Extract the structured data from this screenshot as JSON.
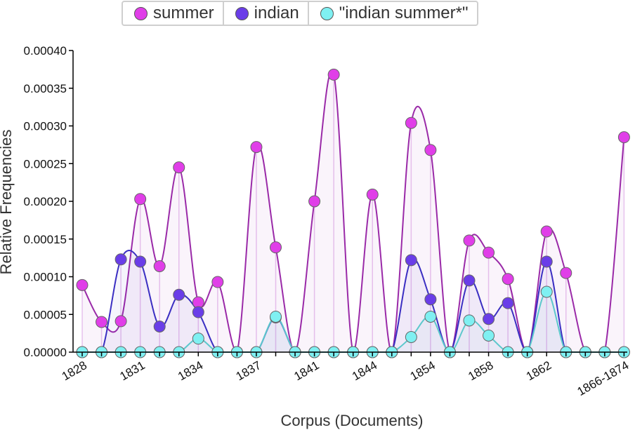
{
  "chart_data": {
    "type": "line",
    "xlabel": "Corpus (Documents)",
    "ylabel": "Relative Frequencies",
    "ylim": [
      0,
      0.0004
    ],
    "y_ticks": [
      "0.00000",
      "0.00005",
      "0.00010",
      "0.00015",
      "0.00020",
      "0.00025",
      "0.00030",
      "0.00035",
      "0.00040"
    ],
    "x_tick_labels": [
      "1828",
      "1831",
      "1834",
      "1837",
      "1841",
      "1844",
      "1854",
      "1858",
      "1862",
      "1866-1874"
    ],
    "x_tick_label_indices": [
      0,
      3,
      6,
      9,
      12,
      15,
      18,
      21,
      24,
      28
    ],
    "n_points": 29,
    "legend_position": "top",
    "series": [
      {
        "name": "summer",
        "color": "#e03ee8",
        "line_color": "#9a2aa8",
        "values": [
          8.9e-05,
          4e-05,
          4.1e-05,
          0.000203,
          0.000114,
          0.000245,
          6.6e-05,
          9.3e-05,
          0.0,
          0.000272,
          0.000139,
          0.0,
          0.0002,
          0.000368,
          0.0,
          0.000209,
          0.0,
          0.000304,
          0.000268,
          0.0,
          0.000148,
          0.000132,
          9.7e-05,
          0.0,
          0.00016,
          0.000105,
          0.0,
          0.0,
          0.000285
        ]
      },
      {
        "name": "indian",
        "color": "#6a3de8",
        "line_color": "#3a2ec2",
        "values": [
          0.0,
          0.0,
          0.000123,
          0.00012,
          3.4e-05,
          7.6e-05,
          5.3e-05,
          0.0,
          0.0,
          0.0,
          4.6e-05,
          0.0,
          0.0,
          0.0,
          0.0,
          0.0,
          0.0,
          0.000122,
          7e-05,
          0.0,
          9.5e-05,
          4.4e-05,
          6.5e-05,
          0.0,
          0.00012,
          0.0,
          0.0,
          0.0,
          0.0
        ]
      },
      {
        "name": "\"indian summer*\"",
        "color": "#7ff0f2",
        "line_color": "#5cc8cc",
        "values": [
          0.0,
          0.0,
          0.0,
          0.0,
          0.0,
          0.0,
          1.8e-05,
          0.0,
          0.0,
          0.0,
          4.7e-05,
          0.0,
          0.0,
          0.0,
          0.0,
          0.0,
          0.0,
          2e-05,
          4.7e-05,
          0.0,
          4.2e-05,
          2.2e-05,
          0.0,
          0.0,
          8e-05,
          0.0,
          0.0,
          0.0,
          0.0
        ]
      }
    ]
  }
}
